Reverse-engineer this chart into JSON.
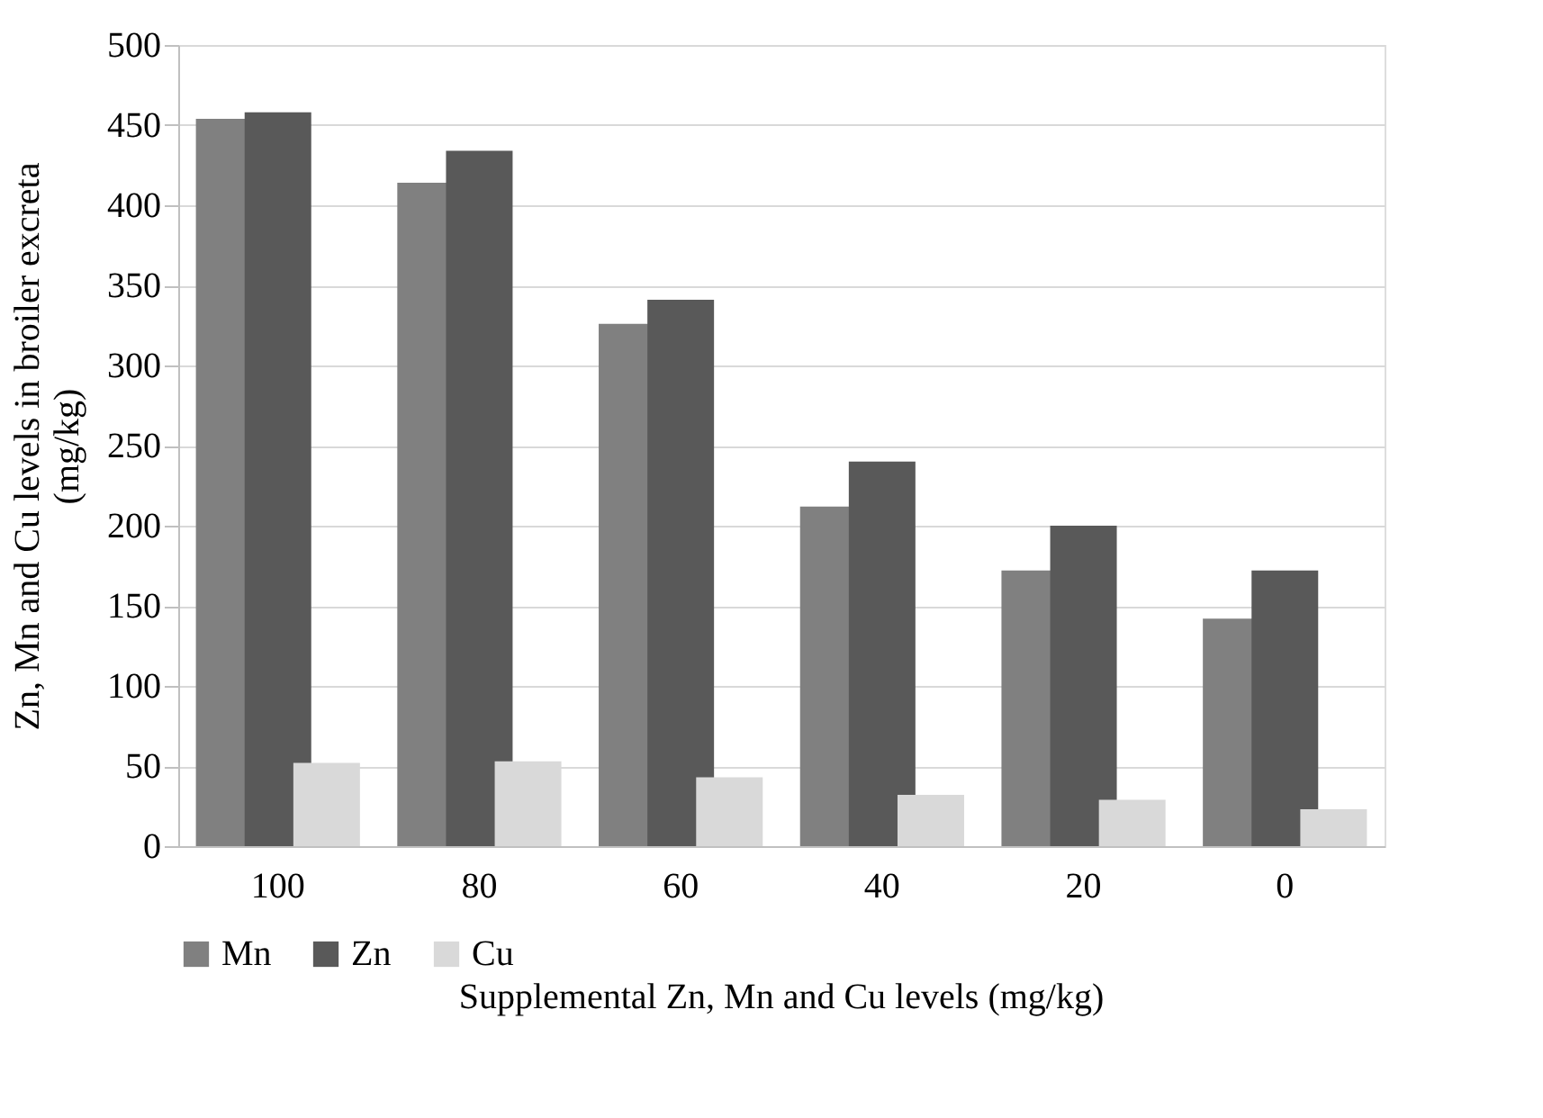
{
  "chart_data": {
    "type": "bar",
    "xlabel": "Supplemental Zn, Mn and Cu levels (mg/kg)",
    "ylabel": "Zn, Mn and Cu levels in broiler excreta (mg/kg)",
    "categories": [
      "100",
      "80",
      "60",
      "40",
      "20",
      "0"
    ],
    "series": [
      {
        "name": "Mn",
        "color": "#808080",
        "values": [
          454,
          414,
          326,
          212,
          172,
          142
        ]
      },
      {
        "name": "Zn",
        "color": "#595959",
        "values": [
          458,
          434,
          341,
          240,
          200,
          172
        ]
      },
      {
        "name": "Cu",
        "color": "#d9d9d9",
        "values": [
          52,
          53,
          43,
          32,
          29,
          23
        ]
      }
    ],
    "ylim": [
      0,
      500
    ],
    "yticks": [
      0,
      50,
      100,
      150,
      200,
      250,
      300,
      350,
      400,
      450,
      500
    ],
    "grid": "y",
    "legend": "bottom"
  }
}
